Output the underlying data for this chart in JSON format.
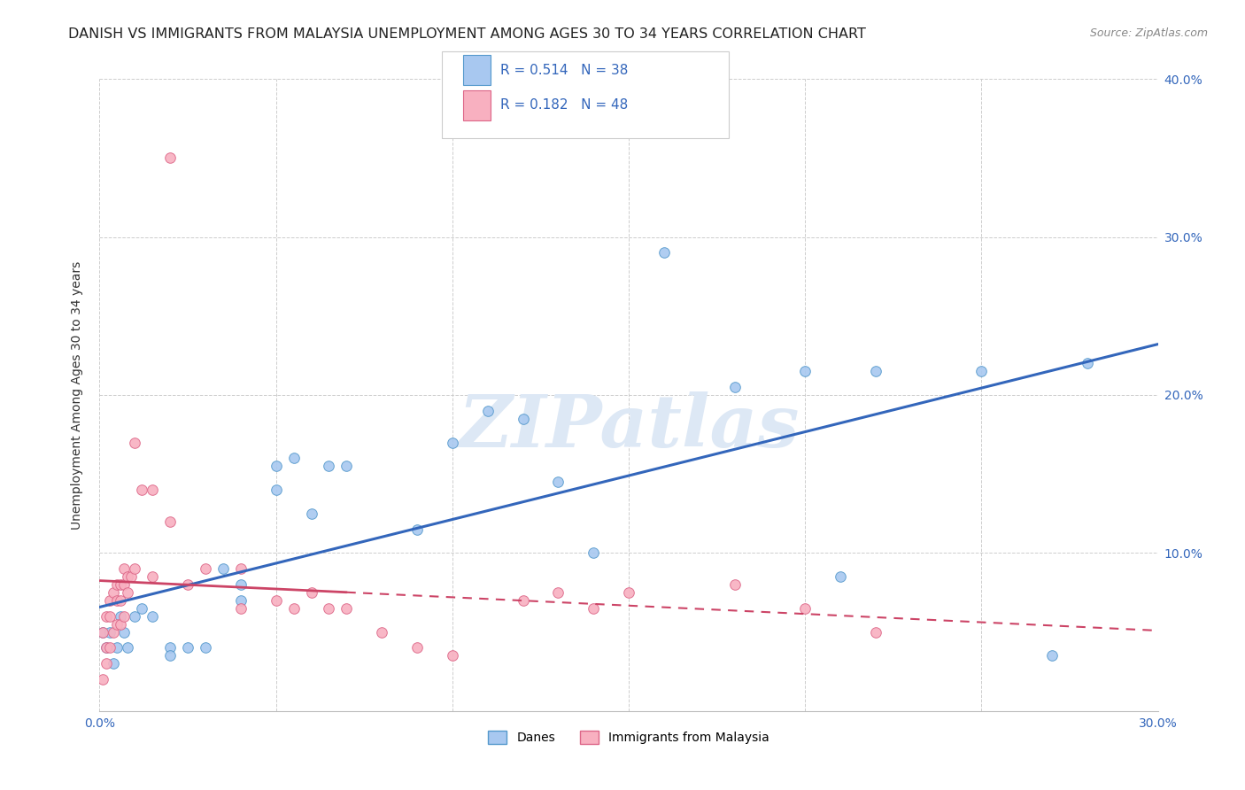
{
  "title": "DANISH VS IMMIGRANTS FROM MALAYSIA UNEMPLOYMENT AMONG AGES 30 TO 34 YEARS CORRELATION CHART",
  "source": "Source: ZipAtlas.com",
  "ylabel": "Unemployment Among Ages 30 to 34 years",
  "xlim": [
    0.0,
    0.3
  ],
  "ylim": [
    0.0,
    0.4
  ],
  "xticks": [
    0.0,
    0.05,
    0.1,
    0.15,
    0.2,
    0.25,
    0.3
  ],
  "xtick_labels": [
    "0.0%",
    "",
    "",
    "",
    "",
    "",
    "30.0%"
  ],
  "yticks": [
    0.0,
    0.1,
    0.2,
    0.3,
    0.4
  ],
  "ytick_labels_left": [
    "",
    "",
    "",
    "",
    ""
  ],
  "ytick_labels_right": [
    "",
    "10.0%",
    "20.0%",
    "30.0%",
    "40.0%"
  ],
  "danes_color": "#a8c8f0",
  "danes_edge": "#5599cc",
  "immigrants_color": "#f8b0c0",
  "immigrants_edge": "#dd6688",
  "danes_R": 0.514,
  "danes_N": 38,
  "immigrants_R": 0.182,
  "immigrants_N": 48,
  "danes_line_color": "#3366bb",
  "immigrants_line_color": "#cc4466",
  "watermark_color": "#dde8f5",
  "title_fontsize": 11.5,
  "label_fontsize": 10,
  "tick_fontsize": 10,
  "marker_size": 70,
  "danes_x": [
    0.001,
    0.002,
    0.003,
    0.004,
    0.005,
    0.006,
    0.007,
    0.008,
    0.01,
    0.012,
    0.015,
    0.02,
    0.02,
    0.025,
    0.03,
    0.035,
    0.04,
    0.04,
    0.05,
    0.05,
    0.055,
    0.06,
    0.065,
    0.07,
    0.09,
    0.1,
    0.11,
    0.12,
    0.13,
    0.14,
    0.16,
    0.18,
    0.2,
    0.21,
    0.22,
    0.25,
    0.27,
    0.28
  ],
  "danes_y": [
    0.05,
    0.04,
    0.05,
    0.03,
    0.04,
    0.06,
    0.05,
    0.04,
    0.06,
    0.065,
    0.06,
    0.04,
    0.035,
    0.04,
    0.04,
    0.09,
    0.07,
    0.08,
    0.14,
    0.155,
    0.16,
    0.125,
    0.155,
    0.155,
    0.115,
    0.17,
    0.19,
    0.185,
    0.145,
    0.1,
    0.29,
    0.205,
    0.215,
    0.085,
    0.215,
    0.215,
    0.035,
    0.22
  ],
  "immigrants_x": [
    0.001,
    0.001,
    0.002,
    0.002,
    0.002,
    0.003,
    0.003,
    0.003,
    0.004,
    0.004,
    0.005,
    0.005,
    0.005,
    0.006,
    0.006,
    0.006,
    0.007,
    0.007,
    0.007,
    0.008,
    0.008,
    0.009,
    0.01,
    0.01,
    0.012,
    0.015,
    0.015,
    0.02,
    0.02,
    0.025,
    0.03,
    0.04,
    0.04,
    0.05,
    0.055,
    0.06,
    0.065,
    0.07,
    0.08,
    0.09,
    0.1,
    0.12,
    0.13,
    0.14,
    0.15,
    0.18,
    0.2,
    0.22
  ],
  "immigrants_y": [
    0.02,
    0.05,
    0.04,
    0.03,
    0.06,
    0.04,
    0.06,
    0.07,
    0.05,
    0.075,
    0.055,
    0.07,
    0.08,
    0.055,
    0.07,
    0.08,
    0.06,
    0.08,
    0.09,
    0.075,
    0.085,
    0.085,
    0.09,
    0.17,
    0.14,
    0.085,
    0.14,
    0.35,
    0.12,
    0.08,
    0.09,
    0.09,
    0.065,
    0.07,
    0.065,
    0.075,
    0.065,
    0.065,
    0.05,
    0.04,
    0.035,
    0.07,
    0.075,
    0.065,
    0.075,
    0.08,
    0.065,
    0.05
  ],
  "imm_line_xmax": 0.07
}
